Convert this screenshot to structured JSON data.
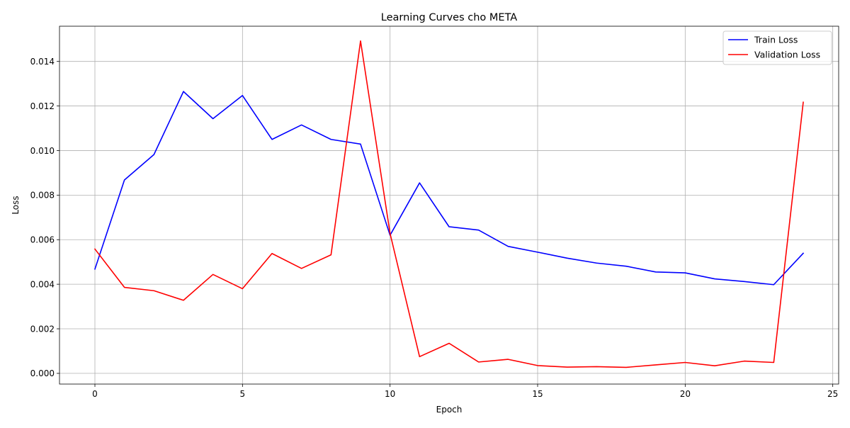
{
  "chart_data": {
    "type": "line",
    "title": "Learning Curves cho META",
    "xlabel": "Epoch",
    "ylabel": "Loss",
    "xlim": [
      -1.2,
      25.2
    ],
    "ylim": [
      -0.00048,
      0.01558
    ],
    "xticks": [
      0,
      5,
      10,
      15,
      20,
      25
    ],
    "yticks": [
      0.0,
      0.002,
      0.004,
      0.006,
      0.008,
      0.01,
      0.012,
      0.014
    ],
    "ytick_labels": [
      "0.000",
      "0.002",
      "0.004",
      "0.006",
      "0.008",
      "0.010",
      "0.012",
      "0.014"
    ],
    "grid": true,
    "legend": "top-right",
    "x": [
      0,
      1,
      2,
      3,
      4,
      5,
      6,
      7,
      8,
      9,
      10,
      11,
      12,
      13,
      14,
      15,
      16,
      17,
      18,
      19,
      20,
      21,
      22,
      23,
      24
    ],
    "series": [
      {
        "name": "Train Loss",
        "color": "#0000ff",
        "values": [
          0.00468,
          0.00868,
          0.00982,
          0.01265,
          0.01143,
          0.01247,
          0.0105,
          0.01115,
          0.0105,
          0.01029,
          0.0062,
          0.00855,
          0.00658,
          0.00643,
          0.0057,
          0.00544,
          0.00517,
          0.00495,
          0.00481,
          0.00455,
          0.00451,
          0.00424,
          0.00412,
          0.00398,
          0.00539
        ]
      },
      {
        "name": "Validation Loss",
        "color": "#ff0000",
        "values": [
          0.00558,
          0.00386,
          0.00371,
          0.00328,
          0.00444,
          0.0038,
          0.00538,
          0.00471,
          0.00532,
          0.01492,
          0.00628,
          0.00075,
          0.00135,
          0.00051,
          0.00063,
          0.00035,
          0.00028,
          0.0003,
          0.00027,
          0.00038,
          0.00049,
          0.00034,
          0.00055,
          0.00049,
          0.01217
        ]
      }
    ]
  }
}
